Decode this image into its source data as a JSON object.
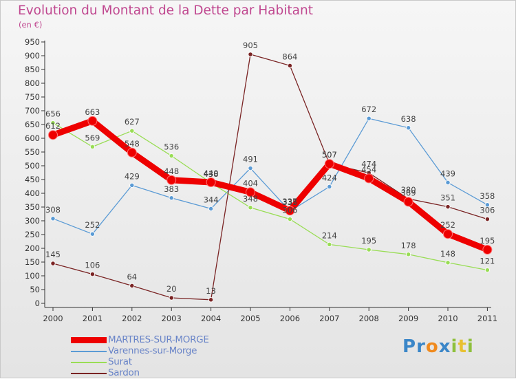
{
  "title": "Evolution du Montant de la Dette par Habitant",
  "subtitle": "(en €)",
  "brand": {
    "letters": [
      {
        "ch": "P",
        "color": "#3a86c8"
      },
      {
        "ch": "r",
        "color": "#3a86c8"
      },
      {
        "ch": "o",
        "color": "#f08a1e"
      },
      {
        "ch": "x",
        "color": "#3a86c8"
      },
      {
        "ch": "i",
        "color": "#8ec03c"
      },
      {
        "ch": "t",
        "color": "#e8c030"
      },
      {
        "ch": "i",
        "color": "#8ec03c"
      }
    ]
  },
  "chart_data": {
    "type": "line",
    "title": "Evolution du Montant de la Dette par Habitant",
    "subtitle": "(en €)",
    "x": [
      "2000",
      "2001",
      "2002",
      "2003",
      "2004",
      "2005",
      "2006",
      "2007",
      "2008",
      "2009",
      "2010",
      "2011"
    ],
    "ylim": [
      0,
      950
    ],
    "yticks": [
      0,
      50,
      100,
      150,
      200,
      250,
      300,
      350,
      400,
      450,
      500,
      550,
      600,
      650,
      700,
      750,
      800,
      850,
      900,
      950
    ],
    "grid": false,
    "legend_position": "bottom-left",
    "series": [
      {
        "name": "MARTRES-SUR-MORGE",
        "color": "#ee0000",
        "emphasis": true,
        "values": [
          612,
          663,
          548,
          448,
          440,
          404,
          337,
          507,
          454,
          369,
          252,
          195
        ]
      },
      {
        "name": "Varennes-sur-Morge",
        "color": "#5b9bd5",
        "emphasis": false,
        "values": [
          308,
          252,
          429,
          383,
          344,
          491,
          335,
          424,
          672,
          638,
          439,
          358
        ]
      },
      {
        "name": "Surat",
        "color": "#99dd55",
        "emphasis": false,
        "values": [
          656,
          569,
          627,
          536,
          438,
          348,
          306,
          214,
          195,
          178,
          148,
          121
        ]
      },
      {
        "name": "Sardon",
        "color": "#7a2424",
        "emphasis": false,
        "values": [
          145,
          106,
          64,
          20,
          13,
          905,
          864,
          507,
          474,
          380,
          351,
          306
        ]
      }
    ]
  }
}
